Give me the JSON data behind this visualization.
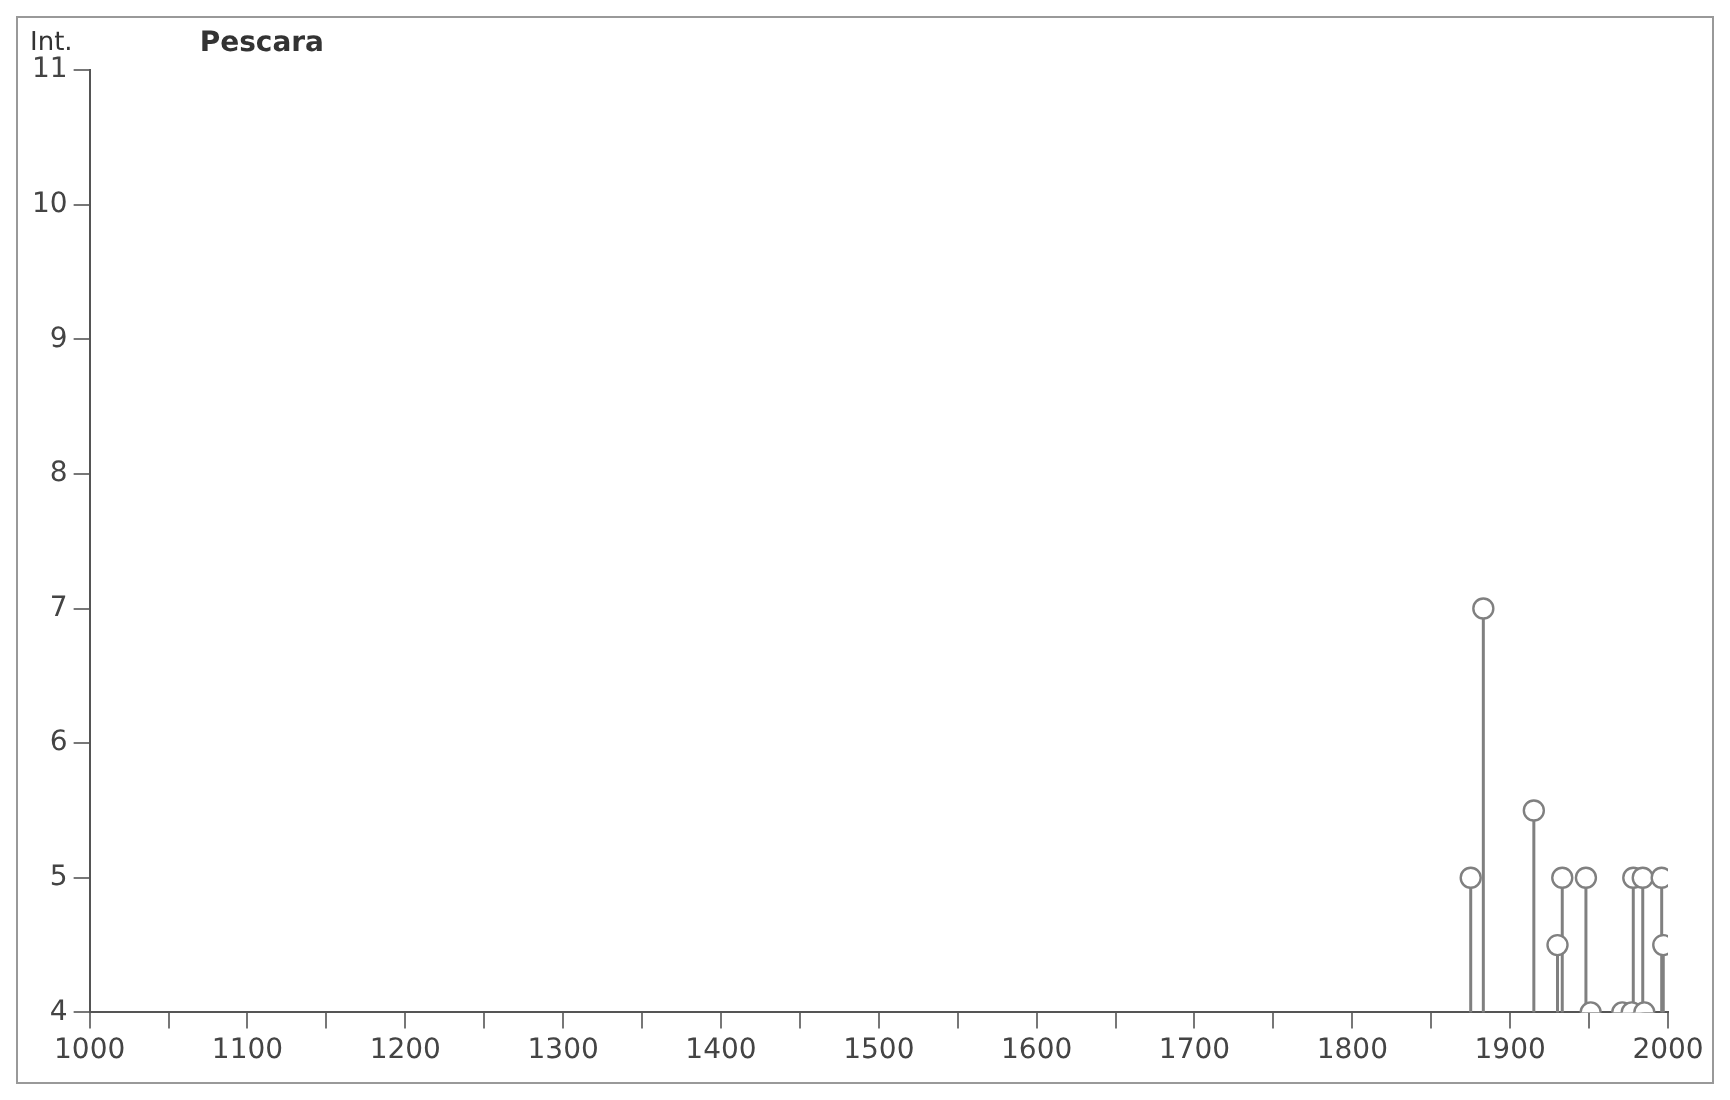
{
  "chart_data": {
    "type": "lollipop",
    "title": "Pescara",
    "ylabel": "Int.",
    "x": [
      1875,
      1883,
      1915,
      1930,
      1933,
      1948,
      1951,
      1971,
      1977,
      1985,
      1978,
      1984,
      1996,
      1997
    ],
    "values": [
      5,
      7,
      5.5,
      4.5,
      5,
      5,
      4,
      4,
      4,
      4,
      5,
      5,
      5,
      4.5
    ],
    "color": "#808080",
    "marker": "circle",
    "grid": false,
    "xlim": [
      1000,
      2000
    ],
    "xticks": [
      1000,
      {
        "value": 1050,
        "label": null
      },
      1100,
      {
        "value": 1150,
        "label": null
      },
      1200,
      {
        "value": 1250,
        "label": null
      },
      1300,
      {
        "value": 1350,
        "label": null
      },
      1400,
      {
        "value": 1450,
        "label": null
      },
      1500,
      {
        "value": 1550,
        "label": null
      },
      1600,
      {
        "value": 1650,
        "label": null
      },
      1700,
      {
        "value": 1750,
        "label": null
      },
      1800,
      {
        "value": 1850,
        "label": null
      },
      1900,
      {
        "value": 1950,
        "label": null
      },
      2000
    ],
    "ylim": [
      4,
      11
    ],
    "yticks": [
      4,
      5,
      6,
      7,
      8,
      9,
      10,
      11
    ]
  }
}
